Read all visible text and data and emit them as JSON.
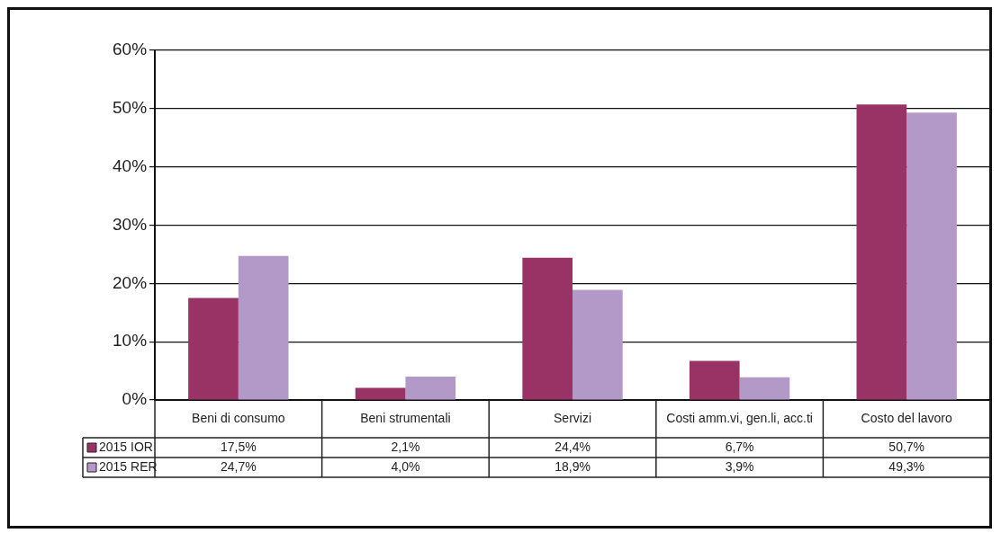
{
  "chart_data": {
    "type": "bar",
    "categories": [
      "Beni di consumo",
      "Beni strumentali",
      "Servizi",
      "Costi amm.vi, gen.li, acc.ti",
      "Costo del lavoro"
    ],
    "series": [
      {
        "name": "2015 IOR",
        "color": "#993366",
        "values": [
          17.5,
          2.1,
          24.4,
          6.7,
          50.7
        ],
        "value_labels": [
          "17,5%",
          "2,1%",
          "24,4%",
          "6,7%",
          "50,7%"
        ]
      },
      {
        "name": "2015 RER",
        "color": "#b399c8",
        "values": [
          24.7,
          4.0,
          18.9,
          3.9,
          49.3
        ],
        "value_labels": [
          "24,7%",
          "4,0%",
          "18,9%",
          "3,9%",
          "49,3%"
        ]
      }
    ],
    "ylim": [
      0,
      60
    ],
    "yticks": [
      {
        "value": 0,
        "label": "0%"
      },
      {
        "value": 10,
        "label": "10%"
      },
      {
        "value": 20,
        "label": "20%"
      },
      {
        "value": 30,
        "label": "30%"
      },
      {
        "value": 40,
        "label": "40%"
      },
      {
        "value": 50,
        "label": "50%"
      },
      {
        "value": 60,
        "label": "60%"
      }
    ],
    "grid": "y",
    "legend": "bottom left"
  }
}
